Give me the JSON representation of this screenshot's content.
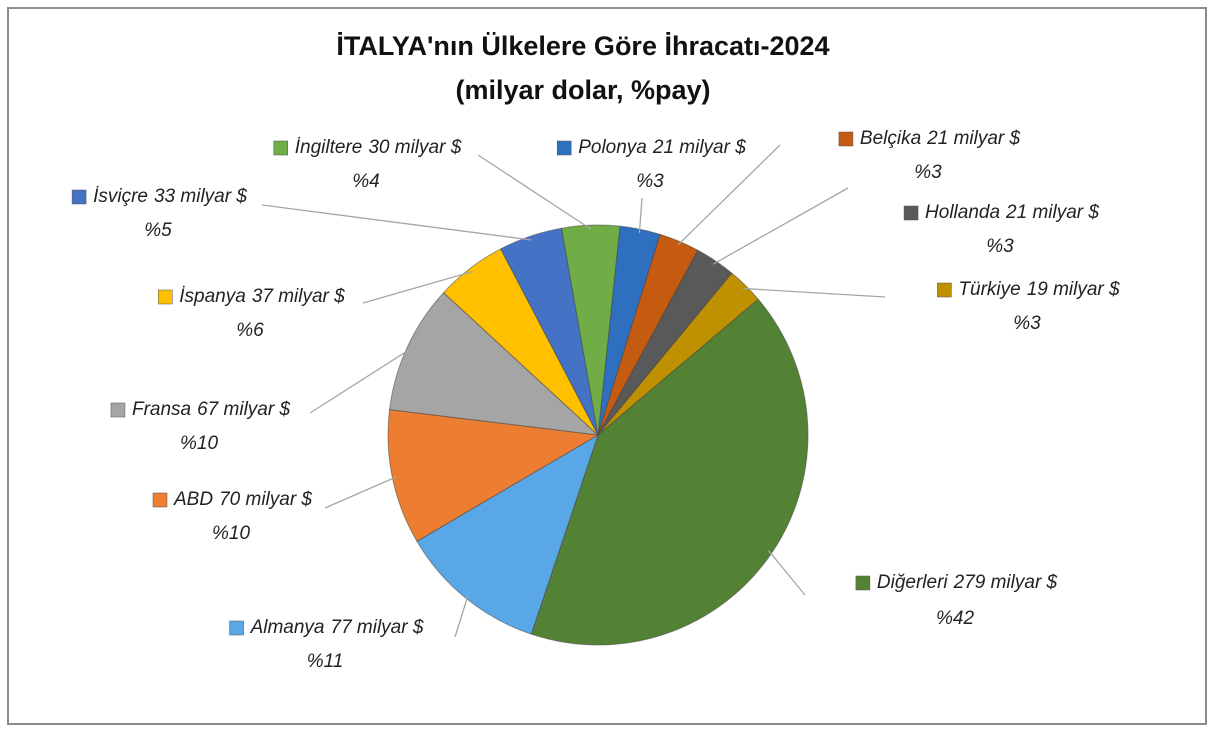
{
  "chart_data": {
    "type": "pie",
    "title": "İTALYA'nın Ülkelere Göre İhracatı-2024",
    "subtitle": "(milyar dolar, %pay)",
    "categories": [
      "Polonya",
      "Belçika",
      "Hollanda",
      "Türkiye",
      "Diğerleri",
      "Almanya",
      "ABD",
      "Fransa",
      "İspanya",
      "İsviçre",
      "İngiltere"
    ],
    "values": [
      21,
      21,
      21,
      19,
      279,
      77,
      70,
      67,
      37,
      33,
      30
    ],
    "value_labels": [
      "21 milyar $",
      "21 milyar $",
      "21 milyar $",
      "19 milyar $",
      "279 milyar $",
      "77 milyar $",
      "70 milyar $",
      "67 milyar $",
      "37 milyar $",
      "33 milyar $",
      "30 milyar $"
    ],
    "share_labels": [
      "%3",
      "%3",
      "%3",
      "%3",
      "%42",
      "%11",
      "%10",
      "%10",
      "%6",
      "%5",
      "%4"
    ],
    "colors": [
      "#2e6fc0",
      "#c55a11",
      "#595959",
      "#bf9000",
      "#548235",
      "#5aa7e8",
      "#ed7d31",
      "#a5a5a5",
      "#ffc000",
      "#4472c4",
      "#70ad47"
    ]
  }
}
